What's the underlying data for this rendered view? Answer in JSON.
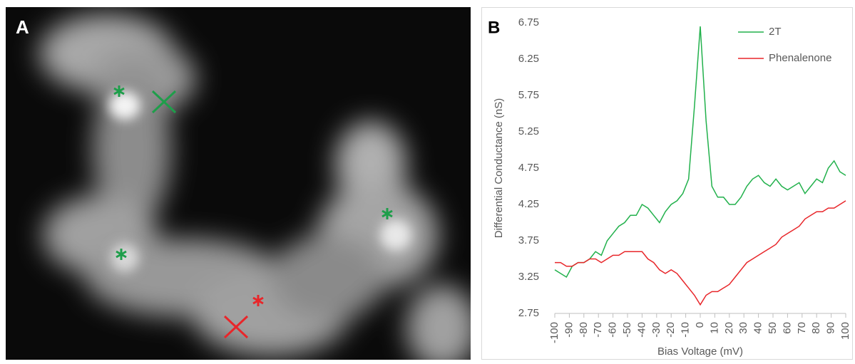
{
  "panel_labels": [
    "A",
    "B"
  ],
  "chart_data": {
    "type": "line",
    "x_label": "Bias Voltage (mV)",
    "y_label": "Differential Conductance (nS)",
    "x": [
      -100,
      -96,
      -92,
      -88,
      -84,
      -80,
      -76,
      -72,
      -68,
      -64,
      -60,
      -56,
      -52,
      -48,
      -44,
      -40,
      -36,
      -32,
      -28,
      -24,
      -20,
      -16,
      -12,
      -8,
      -4,
      0,
      4,
      8,
      12,
      16,
      20,
      24,
      28,
      32,
      36,
      40,
      44,
      48,
      52,
      56,
      60,
      64,
      68,
      72,
      76,
      80,
      84,
      88,
      92,
      96,
      100
    ],
    "series": [
      {
        "name": "2T",
        "color": "#22b14c",
        "values": [
          3.35,
          3.3,
          3.25,
          3.4,
          3.45,
          3.45,
          3.5,
          3.6,
          3.55,
          3.75,
          3.85,
          3.95,
          4.0,
          4.1,
          4.1,
          4.25,
          4.2,
          4.1,
          4.0,
          4.15,
          4.25,
          4.3,
          4.4,
          4.6,
          5.6,
          6.7,
          5.4,
          4.5,
          4.35,
          4.35,
          4.25,
          4.25,
          4.35,
          4.5,
          4.6,
          4.65,
          4.55,
          4.5,
          4.6,
          4.5,
          4.45,
          4.5,
          4.55,
          4.4,
          4.5,
          4.6,
          4.55,
          4.75,
          4.85,
          4.7,
          4.65
        ]
      },
      {
        "name": "Phenalenone",
        "color": "#e8262a",
        "values": [
          3.45,
          3.45,
          3.4,
          3.4,
          3.45,
          3.45,
          3.5,
          3.5,
          3.45,
          3.5,
          3.55,
          3.55,
          3.6,
          3.6,
          3.6,
          3.6,
          3.5,
          3.45,
          3.35,
          3.3,
          3.35,
          3.3,
          3.2,
          3.1,
          3.0,
          2.87,
          3.0,
          3.05,
          3.05,
          3.1,
          3.15,
          3.25,
          3.35,
          3.45,
          3.5,
          3.55,
          3.6,
          3.65,
          3.7,
          3.8,
          3.85,
          3.9,
          3.95,
          4.05,
          4.1,
          4.15,
          4.15,
          4.2,
          4.2,
          4.25,
          4.3
        ]
      }
    ],
    "xlim": [
      -100,
      100
    ],
    "xticks": [
      -100,
      -90,
      -80,
      -70,
      -60,
      -50,
      -40,
      -30,
      -20,
      -10,
      0,
      10,
      20,
      30,
      40,
      50,
      60,
      70,
      80,
      90,
      100
    ],
    "ylim": [
      2.75,
      6.75
    ],
    "yticks": [
      2.75,
      3.25,
      3.75,
      4.25,
      4.75,
      5.25,
      5.75,
      6.25,
      6.75
    ],
    "legend": "top-right"
  }
}
